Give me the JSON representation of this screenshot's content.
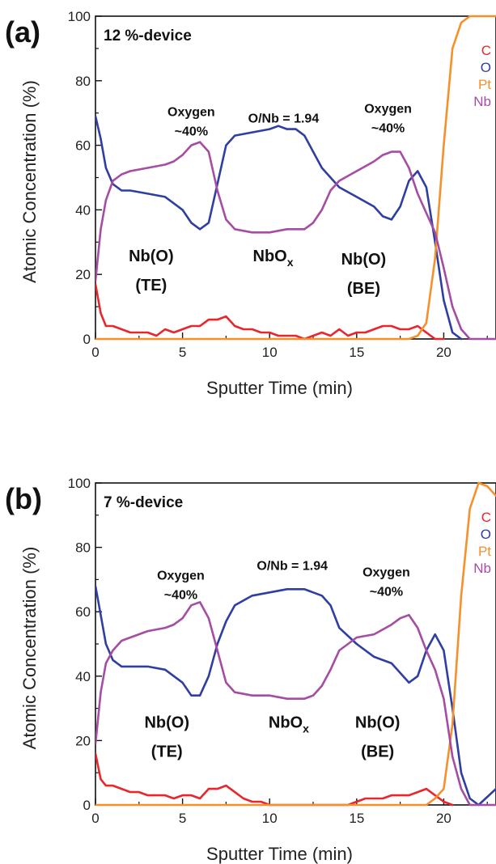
{
  "chart_data": [
    {
      "type": "line",
      "panel_label": "(a)",
      "device_label": "12 %-device",
      "xlabel": "Sputter Time (min)",
      "ylabel": "Atomic Concentration (%)",
      "xlim": [
        0,
        23
      ],
      "ylim": [
        0,
        100
      ],
      "xticks": [
        "0",
        "5",
        "10",
        "15",
        "20"
      ],
      "yticks": [
        "0",
        "20",
        "40",
        "60",
        "80",
        "100"
      ],
      "legend_position": "top-right",
      "annotations": [
        {
          "text": "Oxygen",
          "x": 5.5,
          "y": 69
        },
        {
          "text": "~40%",
          "x": 5.5,
          "y": 63
        },
        {
          "text": "O/Nb = 1.94",
          "x": 10.8,
          "y": 67
        },
        {
          "text": "Oxygen",
          "x": 16.8,
          "y": 70
        },
        {
          "text": "~40%",
          "x": 16.8,
          "y": 64
        },
        {
          "text": "Nb(O)",
          "x": 3.2,
          "y": 24,
          "size": "lg"
        },
        {
          "text": "(TE)",
          "x": 3.2,
          "y": 15,
          "size": "lg"
        },
        {
          "text": "NbO",
          "sub": "x",
          "x": 10.2,
          "y": 24,
          "size": "lg"
        },
        {
          "text": "Nb(O)",
          "x": 15.4,
          "y": 23,
          "size": "lg"
        },
        {
          "text": "(BE)",
          "x": 15.4,
          "y": 14,
          "size": "lg"
        }
      ],
      "series": [
        {
          "name": "C",
          "color": "#e8262b",
          "x": [
            0,
            0.3,
            0.6,
            1,
            1.5,
            2,
            2.5,
            3,
            3.5,
            4,
            4.5,
            5,
            5.5,
            6,
            6.5,
            7,
            7.5,
            8,
            8.5,
            9,
            9.5,
            10,
            10.5,
            11,
            11.5,
            12,
            12.5,
            13,
            13.5,
            14,
            14.5,
            15,
            15.5,
            16,
            16.5,
            17,
            17.5,
            18,
            18.5,
            19,
            19.5,
            20
          ],
          "values": [
            17,
            8,
            4,
            4,
            3,
            2,
            2,
            2,
            1,
            3,
            2,
            3,
            4,
            4,
            6,
            6,
            7,
            4,
            3,
            3,
            2,
            2,
            1,
            1,
            1,
            0,
            1,
            2,
            1,
            3,
            1,
            2,
            2,
            3,
            4,
            4,
            3,
            3,
            4,
            2,
            0,
            0
          ]
        },
        {
          "name": "O",
          "color": "#2e3ea3",
          "x": [
            0,
            0.3,
            0.6,
            1,
            1.5,
            2,
            3,
            4,
            5,
            5.5,
            6,
            6.5,
            7,
            7.5,
            8,
            9,
            10,
            10.5,
            11,
            11.5,
            12,
            13,
            14,
            15,
            16,
            16.5,
            17,
            17.5,
            18,
            18.5,
            19,
            19.5,
            20,
            20.5,
            21
          ],
          "values": [
            69,
            62,
            53,
            48,
            46,
            46,
            45,
            44,
            40,
            36,
            34,
            36,
            48,
            60,
            63,
            64,
            65,
            66,
            65,
            65,
            63,
            53,
            47,
            44,
            41,
            38,
            37,
            41,
            49,
            52,
            47,
            30,
            12,
            2,
            0
          ]
        },
        {
          "name": "Pt",
          "color": "#f5902a",
          "x": [
            0,
            17.5,
            18,
            18.5,
            19,
            19.5,
            20,
            20.5,
            21,
            21.5,
            22,
            23
          ],
          "values": [
            0,
            0,
            0,
            1,
            5,
            25,
            60,
            90,
            98,
            100,
            100,
            100
          ]
        },
        {
          "name": "Nb",
          "color": "#a54ca3",
          "x": [
            0,
            0.3,
            0.6,
            1,
            1.5,
            2,
            3,
            4,
            4.5,
            5,
            5.5,
            6,
            6.5,
            7,
            7.5,
            8,
            9,
            10,
            11,
            12,
            12.5,
            13,
            13.5,
            14,
            15,
            16,
            16.5,
            17,
            17.5,
            18,
            18.5,
            19,
            19.5,
            20,
            20.5,
            21,
            21.5,
            23
          ],
          "values": [
            18,
            34,
            43,
            49,
            51,
            52,
            53,
            54,
            55,
            57,
            60,
            61,
            58,
            46,
            37,
            34,
            33,
            33,
            34,
            34,
            36,
            40,
            46,
            49,
            52,
            55,
            57,
            58,
            58,
            53,
            45,
            39,
            33,
            22,
            10,
            3,
            0,
            0
          ]
        }
      ]
    },
    {
      "type": "line",
      "panel_label": "(b)",
      "device_label": "7 %-device",
      "xlabel": "Sputter Time (min)",
      "ylabel": "Atomic Concentration (%)",
      "xlim": [
        0,
        23
      ],
      "ylim": [
        0,
        100
      ],
      "xticks": [
        "0",
        "5",
        "10",
        "15",
        "20"
      ],
      "yticks": [
        "0",
        "20",
        "40",
        "60",
        "80",
        "100"
      ],
      "legend_position": "top-right",
      "annotations": [
        {
          "text": "Oxygen",
          "x": 4.9,
          "y": 70
        },
        {
          "text": "~40%",
          "x": 4.9,
          "y": 64
        },
        {
          "text": "O/Nb = 1.94",
          "x": 11.3,
          "y": 73
        },
        {
          "text": "Oxygen",
          "x": 16.7,
          "y": 71
        },
        {
          "text": "~40%",
          "x": 16.7,
          "y": 65
        },
        {
          "text": "Nb(O)",
          "x": 4.1,
          "y": 24,
          "size": "lg"
        },
        {
          "text": "(TE)",
          "x": 4.1,
          "y": 15,
          "size": "lg"
        },
        {
          "text": "NbO",
          "sub": "x",
          "x": 11.1,
          "y": 24,
          "size": "lg"
        },
        {
          "text": "Nb(O)",
          "x": 16.2,
          "y": 24,
          "size": "lg"
        },
        {
          "text": "(BE)",
          "x": 16.2,
          "y": 15,
          "size": "lg"
        }
      ],
      "series": [
        {
          "name": "C",
          "color": "#e8262b",
          "x": [
            0,
            0.3,
            0.6,
            1,
            1.5,
            2,
            2.5,
            3,
            3.5,
            4,
            4.5,
            5,
            5.5,
            6,
            6.5,
            7,
            7.5,
            8,
            8.5,
            9,
            9.5,
            10,
            11,
            12,
            13,
            14,
            14.5,
            15,
            15.5,
            16,
            16.5,
            17,
            17.5,
            18,
            18.5,
            19,
            19.5,
            20,
            20.5
          ],
          "values": [
            16,
            8,
            6,
            6,
            5,
            4,
            4,
            3,
            3,
            3,
            2,
            3,
            3,
            2,
            5,
            5,
            6,
            4,
            2,
            1,
            1,
            0,
            0,
            0,
            0,
            0,
            0,
            1,
            2,
            2,
            2,
            3,
            3,
            3,
            4,
            5,
            3,
            1,
            0
          ]
        },
        {
          "name": "O",
          "color": "#2e3ea3",
          "x": [
            0,
            0.3,
            0.6,
            1,
            1.5,
            2,
            3,
            4,
            5,
            5.5,
            6,
            6.5,
            7,
            7.5,
            8,
            9,
            10,
            11,
            12,
            12.5,
            13,
            13.5,
            14,
            15,
            16,
            17,
            17.5,
            18,
            18.5,
            19,
            19.5,
            20,
            20.5,
            21,
            21.5,
            22,
            23
          ],
          "values": [
            68,
            59,
            50,
            45,
            43,
            43,
            43,
            42,
            38,
            34,
            34,
            40,
            50,
            57,
            62,
            65,
            66,
            67,
            67,
            66,
            65,
            62,
            55,
            50,
            46,
            44,
            41,
            38,
            40,
            48,
            53,
            48,
            30,
            10,
            2,
            0,
            5
          ]
        },
        {
          "name": "Pt",
          "color": "#f5902a",
          "x": [
            0,
            19,
            19.5,
            20,
            20.5,
            21,
            21.5,
            22,
            22.5,
            23
          ],
          "values": [
            0,
            0,
            2,
            5,
            25,
            65,
            92,
            100,
            99,
            96
          ]
        },
        {
          "name": "Nb",
          "color": "#a54ca3",
          "x": [
            0,
            0.3,
            0.6,
            1,
            1.5,
            2,
            3,
            4,
            4.5,
            5,
            5.5,
            6,
            6.5,
            7,
            7.5,
            8,
            9,
            10,
            11,
            12,
            12.5,
            13,
            13.5,
            14,
            14.5,
            15,
            16,
            17,
            17.5,
            18,
            18.5,
            19,
            19.5,
            20,
            20.5,
            21,
            21.5,
            23
          ],
          "values": [
            19,
            35,
            44,
            48,
            51,
            52,
            54,
            55,
            56,
            58,
            62,
            63,
            58,
            48,
            38,
            35,
            34,
            34,
            33,
            33,
            34,
            37,
            42,
            48,
            50,
            52,
            53,
            56,
            58,
            59,
            55,
            48,
            42,
            33,
            15,
            5,
            0,
            0
          ]
        }
      ]
    }
  ]
}
